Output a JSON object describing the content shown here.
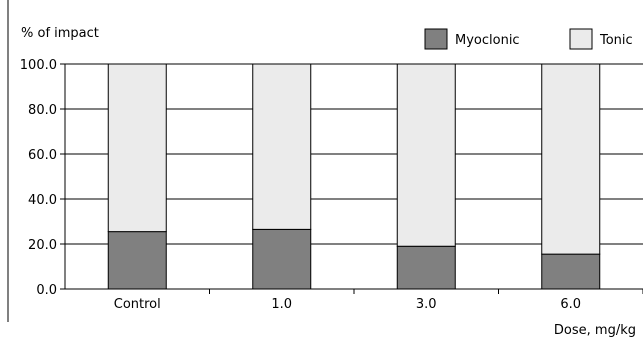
{
  "chart_data": {
    "type": "bar",
    "stacked": true,
    "ylabel": "% of impact",
    "xlabel": "Dose, mg/kg",
    "categories": [
      "Control",
      "1.0",
      "3.0",
      "6.0"
    ],
    "ylim": [
      0,
      100
    ],
    "yticks": [
      "0.0",
      "20.0",
      "40.0",
      "60.0",
      "80.0",
      "100.0"
    ],
    "grid": true,
    "legend_position": "top-right",
    "series": [
      {
        "name": "Myoclonic",
        "values": [
          25.5,
          26.5,
          19.0,
          15.5
        ],
        "color": "#808080"
      },
      {
        "name": "Tonic",
        "values": [
          74.5,
          73.5,
          81.0,
          84.5
        ],
        "color": "#ebebeb"
      }
    ]
  }
}
